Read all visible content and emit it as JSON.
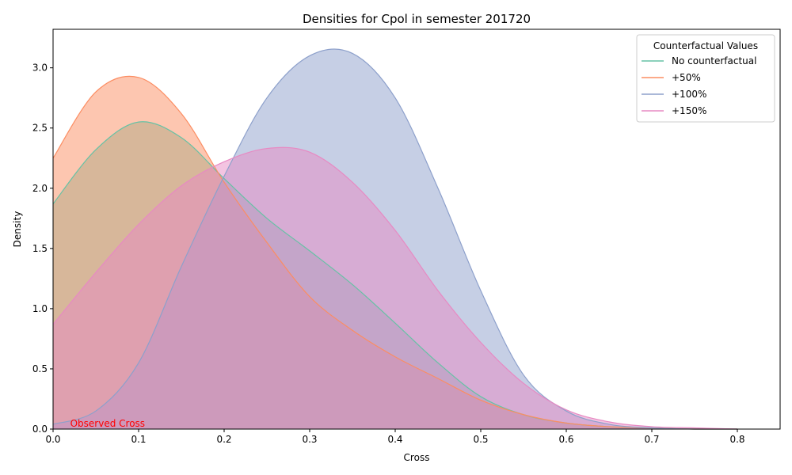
{
  "chart_data": {
    "type": "area",
    "title": "Densities for Cpol in semester 201720",
    "xlabel": "Cross",
    "ylabel": "Density",
    "xlim": [
      0,
      0.85
    ],
    "ylim": [
      0,
      3.32
    ],
    "xticks": [
      "0.0",
      "0.1",
      "0.2",
      "0.3",
      "0.4",
      "0.5",
      "0.6",
      "0.7",
      "0.8"
    ],
    "yticks": [
      "0.0",
      "0.5",
      "1.0",
      "1.5",
      "2.0",
      "2.5",
      "3.0"
    ],
    "grid": false,
    "legend": {
      "title": "Counterfactual Values",
      "position": "top-right"
    },
    "annotation": {
      "text": "Observed Cross",
      "color": "#ff0000",
      "x": 0.02,
      "y": 0.0
    },
    "x": [
      0.0,
      0.05,
      0.1,
      0.15,
      0.2,
      0.25,
      0.3,
      0.35,
      0.4,
      0.45,
      0.5,
      0.55,
      0.6,
      0.65,
      0.7,
      0.75,
      0.8
    ],
    "series": [
      {
        "name": "No counterfactual",
        "color": "#66c2a5",
        "values": [
          1.87,
          2.32,
          2.55,
          2.42,
          2.08,
          1.75,
          1.48,
          1.2,
          0.88,
          0.55,
          0.27,
          0.12,
          0.05,
          0.02,
          0.01,
          0.0,
          0.0
        ]
      },
      {
        "name": "+50%",
        "color": "#fc8d62",
        "values": [
          2.25,
          2.8,
          2.92,
          2.62,
          2.05,
          1.55,
          1.1,
          0.82,
          0.6,
          0.42,
          0.24,
          0.12,
          0.05,
          0.02,
          0.01,
          0.0,
          0.0
        ]
      },
      {
        "name": "+100%",
        "color": "#8da0cb",
        "values": [
          0.04,
          0.15,
          0.55,
          1.35,
          2.1,
          2.75,
          3.1,
          3.12,
          2.75,
          2.0,
          1.15,
          0.45,
          0.15,
          0.04,
          0.01,
          0.0,
          0.0
        ]
      },
      {
        "name": "+150%",
        "color": "#e78ac3",
        "values": [
          0.87,
          1.3,
          1.7,
          2.02,
          2.22,
          2.33,
          2.3,
          2.05,
          1.65,
          1.15,
          0.72,
          0.38,
          0.16,
          0.06,
          0.02,
          0.01,
          0.0
        ]
      }
    ]
  }
}
